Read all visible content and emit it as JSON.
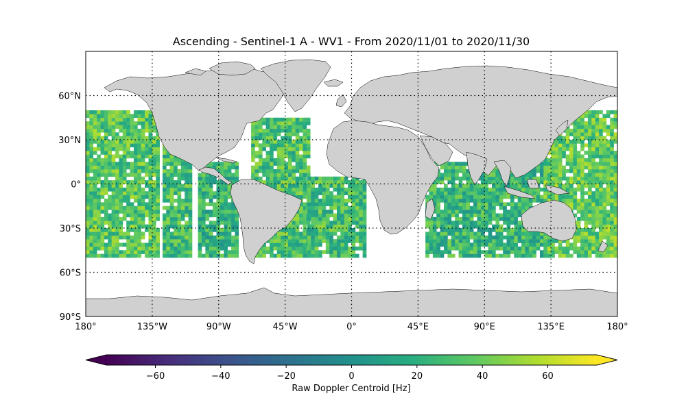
{
  "title": "Ascending - Sentinel-1 A - WV1 - From 2020/11/01 to 2020/11/30",
  "map": {
    "projection": "PlateCarree",
    "lon_range": [
      -180,
      180
    ],
    "lat_range": [
      -90,
      90
    ],
    "gridlines": "dotted",
    "land_color": "#d0d0d0",
    "coastline_color": "#000000",
    "lon_ticks": [
      {
        "value": -180,
        "label": "180°"
      },
      {
        "value": -135,
        "label": "135°W"
      },
      {
        "value": -90,
        "label": "90°W"
      },
      {
        "value": -45,
        "label": "45°W"
      },
      {
        "value": 0,
        "label": "0°"
      },
      {
        "value": 45,
        "label": "45°E"
      },
      {
        "value": 90,
        "label": "90°E"
      },
      {
        "value": 135,
        "label": "135°E"
      },
      {
        "value": 180,
        "label": "180°"
      }
    ],
    "lat_ticks": [
      {
        "value": 60,
        "label": "60°N"
      },
      {
        "value": 30,
        "label": "30°N"
      },
      {
        "value": 0,
        "label": "0°"
      },
      {
        "value": -30,
        "label": "30°S"
      },
      {
        "value": -60,
        "label": "60°S"
      },
      {
        "value": -90,
        "label": "90°S"
      }
    ],
    "data_lat_range": [
      -50,
      50
    ],
    "data_swaths": [
      {
        "lon_range": [
          -180,
          -130
        ],
        "lat_range": [
          -50,
          50
        ],
        "mean": 35
      },
      {
        "lon_range": [
          -128,
          -108
        ],
        "lat_range": [
          -50,
          30
        ],
        "mean": 28
      },
      {
        "lon_range": [
          -104,
          -78
        ],
        "lat_range": [
          -50,
          14
        ],
        "mean": 22
      },
      {
        "lon_range": [
          -68,
          -30
        ],
        "lat_range": [
          -50,
          45
        ],
        "mean": 30
      },
      {
        "lon_range": [
          -30,
          10
        ],
        "lat_range": [
          -50,
          5
        ],
        "mean": 28
      },
      {
        "lon_range": [
          50,
          135
        ],
        "lat_range": [
          -50,
          15
        ],
        "mean": 24
      },
      {
        "lon_range": [
          130,
          180
        ],
        "lat_range": [
          -50,
          50
        ],
        "mean": 38
      }
    ]
  },
  "colorbar": {
    "label": "Raw Doppler Centroid [Hz]",
    "colormap": "viridis",
    "range": [
      -75,
      75
    ],
    "extend": "both",
    "ticks": [
      {
        "value": -60,
        "label": "−60"
      },
      {
        "value": -40,
        "label": "−40"
      },
      {
        "value": -20,
        "label": "−20"
      },
      {
        "value": 0,
        "label": "0"
      },
      {
        "value": 20,
        "label": "20"
      },
      {
        "value": 40,
        "label": "40"
      },
      {
        "value": 60,
        "label": "60"
      }
    ]
  }
}
